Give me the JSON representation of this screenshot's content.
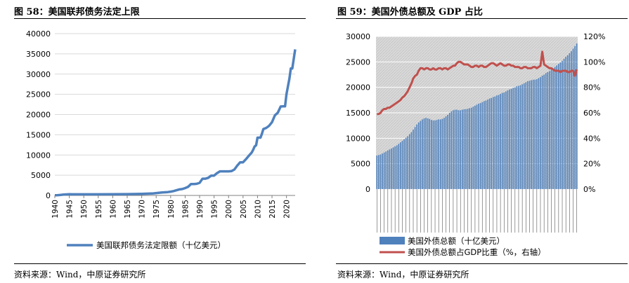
{
  "left": {
    "figure_title": "图 58：美国联邦债务法定上限",
    "source": "资料来源：Wind，中原证券研究所"
  },
  "right": {
    "figure_title": "图 59：美国外债总额及 GDP 占比",
    "source": "资料来源：Wind，中原证券研究所"
  },
  "colors": {
    "blue": "#4f81bd",
    "red": "#c0504d",
    "plot_bg": "#d9d9d9",
    "grid": "#ffffff",
    "left_grid": "#d9d9d9"
  },
  "chart_data": [
    {
      "type": "line",
      "title": "",
      "xlabel": "",
      "ylabel": "",
      "xlim": [
        1940,
        2023
      ],
      "ylim": [
        0,
        40000
      ],
      "x_ticks": [
        "1940",
        "1945",
        "1950",
        "1955",
        "1960",
        "1965",
        "1970",
        "1975",
        "1980",
        "1985",
        "1990",
        "1995",
        "2000",
        "2005",
        "2010",
        "2015",
        "2020"
      ],
      "y_ticks": [
        "0",
        "5000",
        "10000",
        "15000",
        "20000",
        "25000",
        "30000",
        "35000",
        "40000"
      ],
      "grid": "horizontal",
      "legend": "bottom",
      "series": [
        {
          "name": "美国联邦债务法定限额（十亿美元）",
          "x": [
            1940,
            1941,
            1942,
            1943,
            1944,
            1945,
            1946,
            1950,
            1955,
            1960,
            1965,
            1970,
            1974,
            1977,
            1979,
            1980,
            1981,
            1982,
            1983,
            1984,
            1985,
            1986,
            1987,
            1988,
            1989,
            1990,
            1991,
            1992,
            1993,
            1994,
            1995,
            1996,
            1997,
            1998,
            1999,
            2000,
            2001,
            2002,
            2003,
            2004,
            2005,
            2006,
            2007,
            2008,
            2008.5,
            2009,
            2009.5,
            2010,
            2011,
            2011.5,
            2012,
            2013,
            2014,
            2015,
            2016,
            2017,
            2018,
            2019,
            2019.5,
            2020,
            2021,
            2021.5,
            2022,
            2023
          ],
          "y": [
            49,
            65,
            125,
            210,
            260,
            300,
            275,
            275,
            281,
            293,
            328,
            395,
            495,
            752,
            830,
            935,
            1080,
            1290,
            1490,
            1573,
            1823,
            2111,
            2800,
            2800,
            2870,
            3123,
            4145,
            4145,
            4370,
            4900,
            4900,
            5500,
            5950,
            5950,
            5950,
            5950,
            6000,
            6400,
            7384,
            8184,
            8184,
            8965,
            9815,
            10615,
            11315,
            12104,
            12394,
            14294,
            14294,
            15194,
            16394,
            16699,
            17212,
            18113,
            19808,
            20456,
            21988,
            22030,
            22030,
            25000,
            28881,
            31381,
            31381,
            36100
          ]
        }
      ]
    },
    {
      "type": "bar+line",
      "title": "",
      "legend": "bottom",
      "grid": "horizontal",
      "y_left_ticks": [
        "0",
        "5000",
        "10000",
        "15000",
        "20000",
        "25000",
        "30000"
      ],
      "y_left_lim": [
        0,
        30000
      ],
      "y_right_ticks": [
        "0%",
        "20%",
        "40%",
        "60%",
        "80%",
        "100%",
        "120%"
      ],
      "y_right_lim": [
        0,
        1.2
      ],
      "series": [
        {
          "name": "美国外债总额（十亿美元）",
          "type": "bar",
          "axis": "left",
          "values": [
            6600,
            6700,
            6800,
            7000,
            7200,
            7400,
            7600,
            7800,
            8000,
            8200,
            8400,
            8600,
            8900,
            9200,
            9500,
            9800,
            10100,
            10400,
            10800,
            11200,
            11700,
            12200,
            12700,
            13100,
            13400,
            13700,
            13900,
            14000,
            13900,
            13800,
            13600,
            13500,
            13500,
            13600,
            13700,
            13700,
            13800,
            14000,
            14300,
            14600,
            15000,
            15300,
            15500,
            15600,
            15600,
            15500,
            15500,
            15600,
            15700,
            15700,
            15800,
            15900,
            16000,
            16200,
            16400,
            16600,
            16800,
            16900,
            17100,
            17300,
            17400,
            17600,
            17800,
            17900,
            18100,
            18200,
            18400,
            18500,
            18700,
            18900,
            19000,
            19200,
            19400,
            19600,
            19700,
            19900,
            20000,
            20200,
            20300,
            20400,
            20600,
            20800,
            21000,
            21200,
            21300,
            21400,
            21500,
            21500,
            21600,
            21800,
            22000,
            22300,
            22500,
            22800,
            23000,
            23200,
            23500,
            23700,
            24000,
            24300,
            24600,
            24900,
            25200,
            25600,
            26000,
            26300,
            26700,
            27100,
            27600,
            28100,
            28600
          ]
        },
        {
          "name": "美国外债总额占GDP比重（%，右轴）",
          "type": "line",
          "axis": "right",
          "values": [
            0.59,
            0.59,
            0.6,
            0.62,
            0.63,
            0.63,
            0.64,
            0.64,
            0.65,
            0.66,
            0.67,
            0.68,
            0.69,
            0.7,
            0.72,
            0.73,
            0.75,
            0.77,
            0.8,
            0.83,
            0.87,
            0.89,
            0.9,
            0.93,
            0.95,
            0.95,
            0.94,
            0.95,
            0.95,
            0.94,
            0.94,
            0.95,
            0.94,
            0.94,
            0.95,
            0.95,
            0.94,
            0.95,
            0.95,
            0.94,
            0.95,
            0.96,
            0.97,
            0.97,
            0.99,
            1.0,
            1.0,
            0.99,
            0.98,
            0.98,
            0.98,
            0.97,
            0.96,
            0.96,
            0.97,
            0.97,
            0.96,
            0.97,
            0.97,
            0.96,
            0.96,
            0.97,
            0.98,
            0.99,
            0.99,
            0.98,
            0.97,
            0.98,
            0.99,
            0.98,
            0.97,
            0.97,
            0.98,
            0.98,
            0.97,
            0.97,
            0.96,
            0.96,
            0.96,
            0.95,
            0.95,
            0.96,
            0.96,
            0.95,
            0.95,
            0.95,
            0.96,
            0.96,
            0.95,
            0.96,
            0.97,
            1.08,
            0.98,
            0.97,
            0.96,
            0.95,
            0.95,
            0.94,
            0.93,
            0.93,
            0.93,
            0.92,
            0.93,
            0.93,
            0.93,
            0.92,
            0.92,
            0.93,
            0.93,
            0.89,
            0.94
          ]
        }
      ]
    }
  ]
}
